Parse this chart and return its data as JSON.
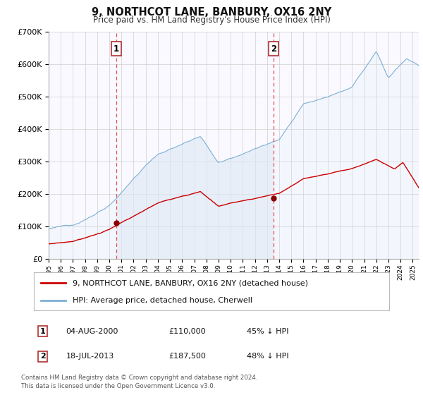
{
  "title": "9, NORTHCOT LANE, BANBURY, OX16 2NY",
  "subtitle": "Price paid vs. HM Land Registry's House Price Index (HPI)",
  "legend_line1": "9, NORTHCOT LANE, BANBURY, OX16 2NY (detached house)",
  "legend_line2": "HPI: Average price, detached house, Cherwell",
  "transaction1_date": "04-AUG-2000",
  "transaction1_price": "£110,000",
  "transaction1_pct": "45% ↓ HPI",
  "transaction2_date": "18-JUL-2013",
  "transaction2_price": "£187,500",
  "transaction2_pct": "48% ↓ HPI",
  "footer": "Contains HM Land Registry data © Crown copyright and database right 2024.\nThis data is licensed under the Open Government Licence v3.0.",
  "hpi_color": "#7bafd4",
  "hpi_fill_color": "#dce8f5",
  "price_color": "#cc0000",
  "marker_color": "#8b0000",
  "vline_color": "#e05050",
  "label_box_edgecolor": "#b03030",
  "grid_color": "#d0d0d0",
  "bg_color": "#ffffff",
  "plot_bg_color": "#f9f9ff",
  "ylim_max": 700000,
  "transaction1_year": 2000.58,
  "transaction2_year": 2013.54,
  "transaction1_price_val": 110000,
  "transaction2_price_val": 187500
}
